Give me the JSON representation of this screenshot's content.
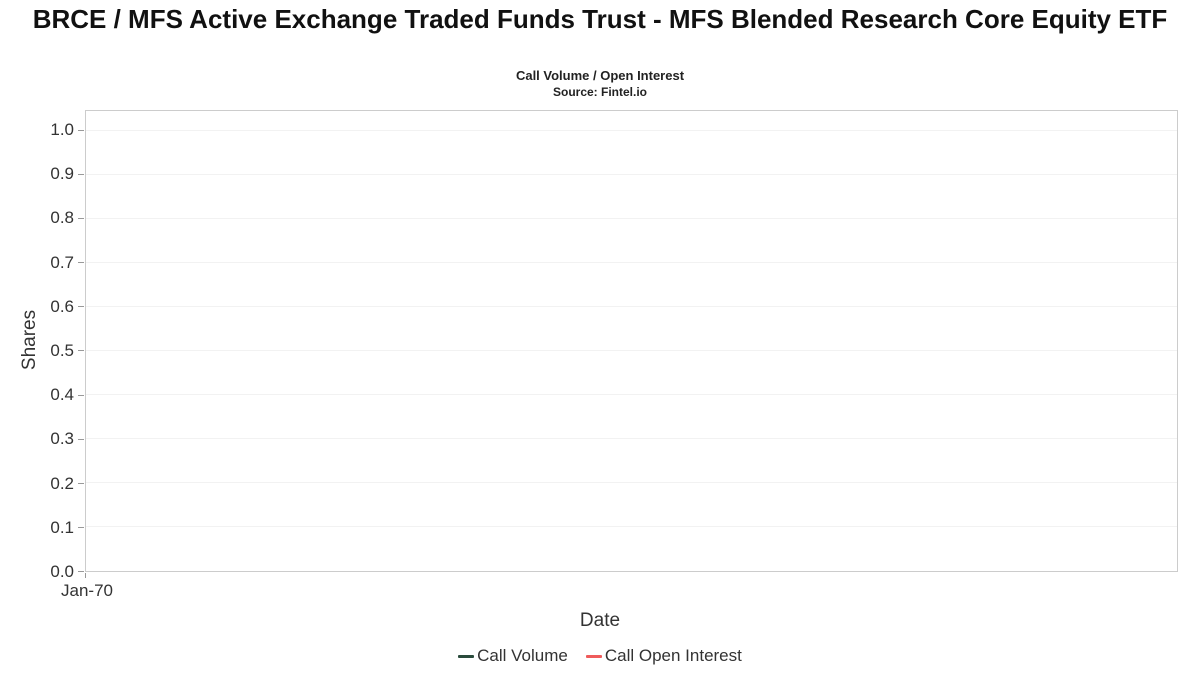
{
  "header": {
    "title": "BRCE / MFS Active Exchange Traded Funds Trust - MFS Blended Research Core Equity ETF",
    "subtitle": "Call Volume / Open Interest",
    "source": "Source: Fintel.io"
  },
  "chart_data": {
    "type": "line",
    "title": "BRCE / MFS Active Exchange Traded Funds Trust - MFS Blended Research Core Equity ETF",
    "subtitle": "Call Volume / Open Interest",
    "source": "Source: Fintel.io",
    "xlabel": "Date",
    "ylabel": "Shares",
    "ylim": [
      0.0,
      1.0
    ],
    "yticks": [
      "1.0",
      "0.9",
      "0.8",
      "0.7",
      "0.6",
      "0.5",
      "0.4",
      "0.3",
      "0.2",
      "0.1",
      "0.0"
    ],
    "xticks": [
      "Jan-70"
    ],
    "grid": true,
    "legend_position": "bottom",
    "series": [
      {
        "name": "Call Volume",
        "color": "#2a4b3c",
        "x": [],
        "values": []
      },
      {
        "name": "Call Open Interest",
        "color": "#ef5b5b",
        "x": [],
        "values": []
      }
    ]
  }
}
